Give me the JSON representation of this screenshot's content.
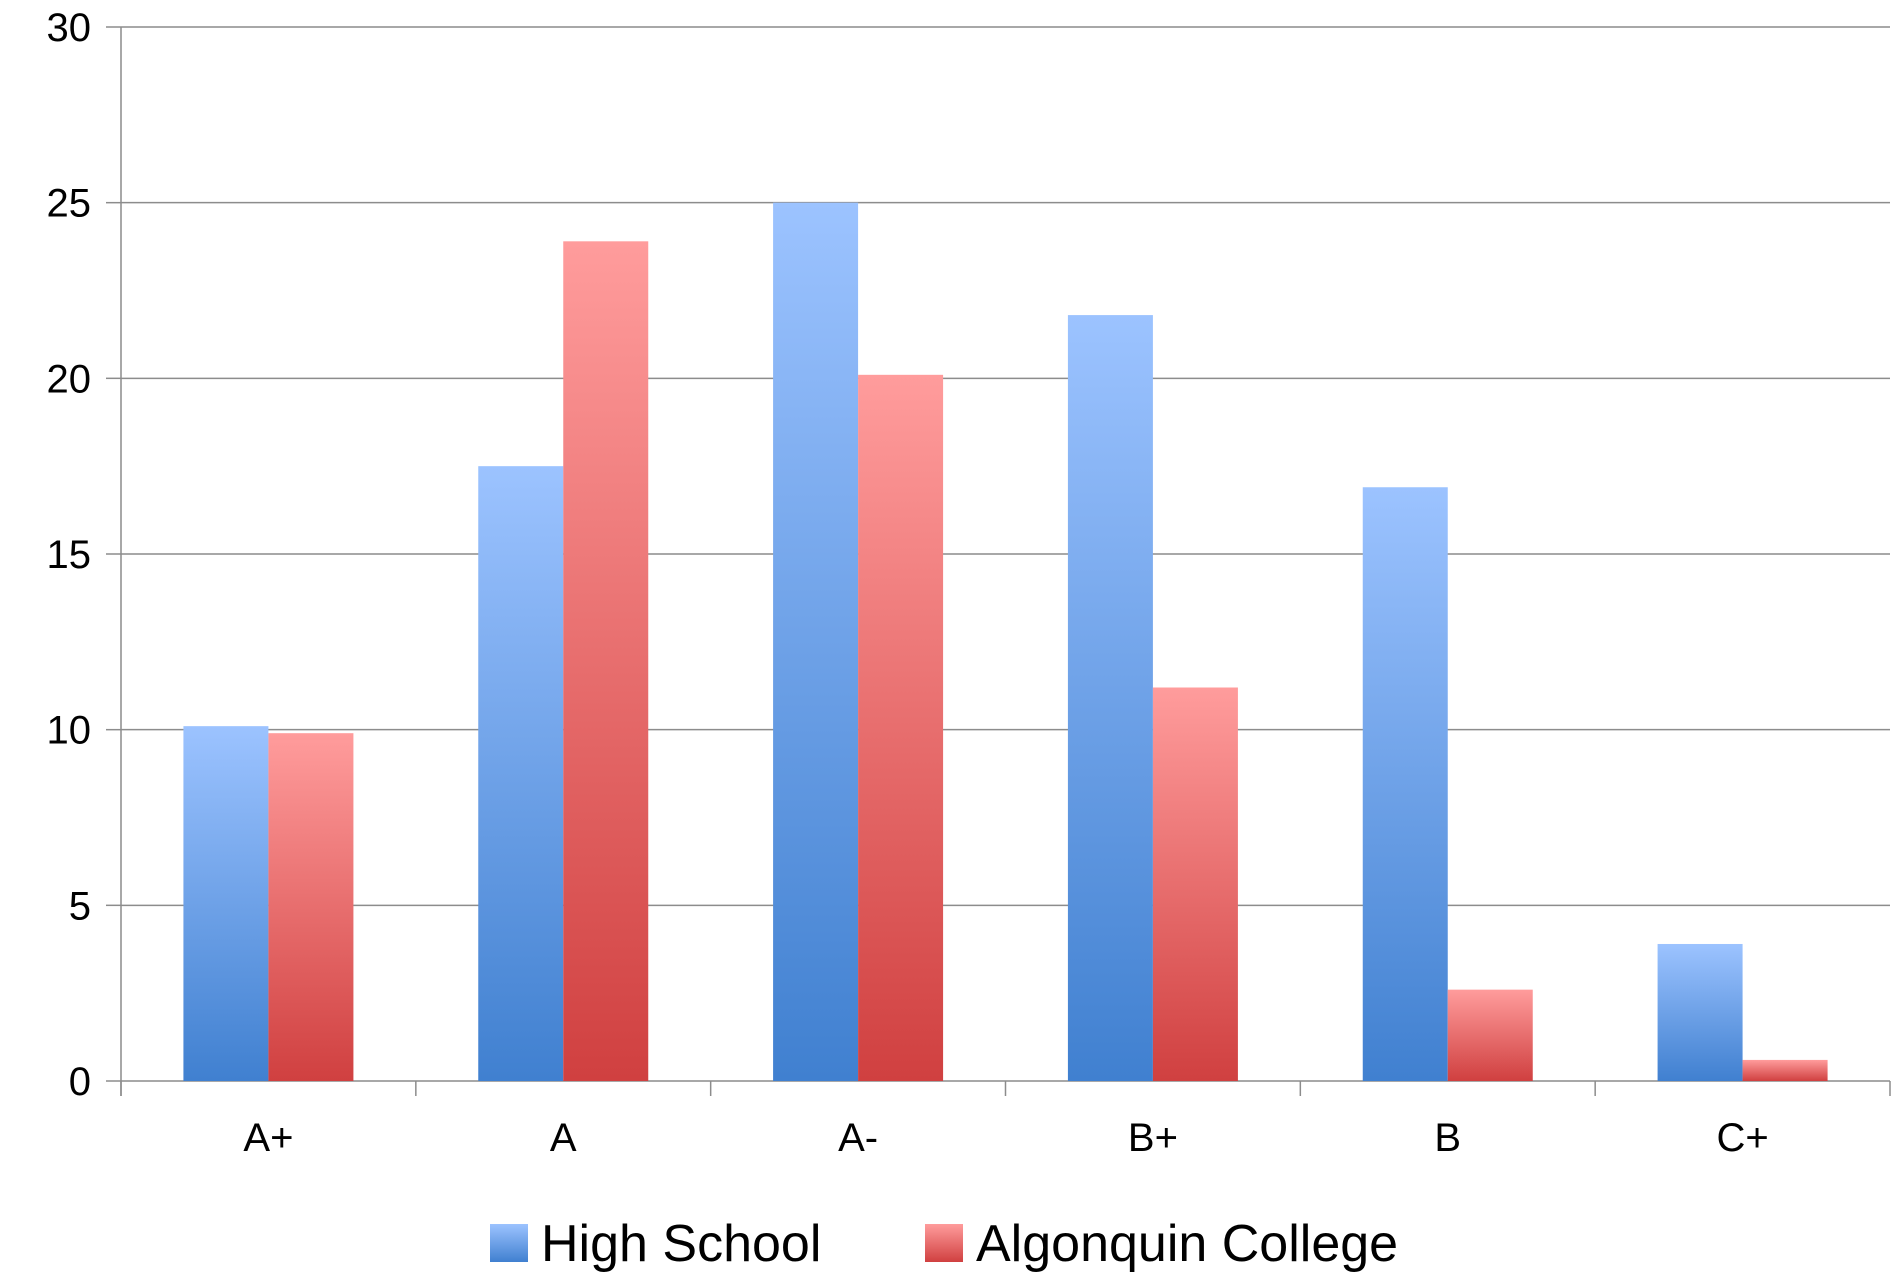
{
  "chart_data": {
    "type": "bar",
    "title": "",
    "xlabel": "",
    "ylabel": "",
    "categories": [
      "A+",
      "A",
      "A-",
      "B+",
      "B",
      "C+"
    ],
    "series": [
      {
        "name": "High School",
        "values": [
          10.1,
          17.5,
          25.0,
          21.8,
          16.9,
          3.9
        ],
        "color_top": "#9cc3ff",
        "color_bottom": "#4080d0"
      },
      {
        "name": "Algonquin College",
        "values": [
          9.9,
          23.9,
          20.1,
          11.2,
          2.6,
          0.6
        ],
        "color_top": "#ff9c9c",
        "color_bottom": "#d04040"
      }
    ],
    "ylim": [
      0,
      30
    ],
    "yticks": [
      "0",
      "5",
      "10",
      "15",
      "20",
      "25",
      "30"
    ],
    "grid": true,
    "legend_position": "bottom"
  }
}
